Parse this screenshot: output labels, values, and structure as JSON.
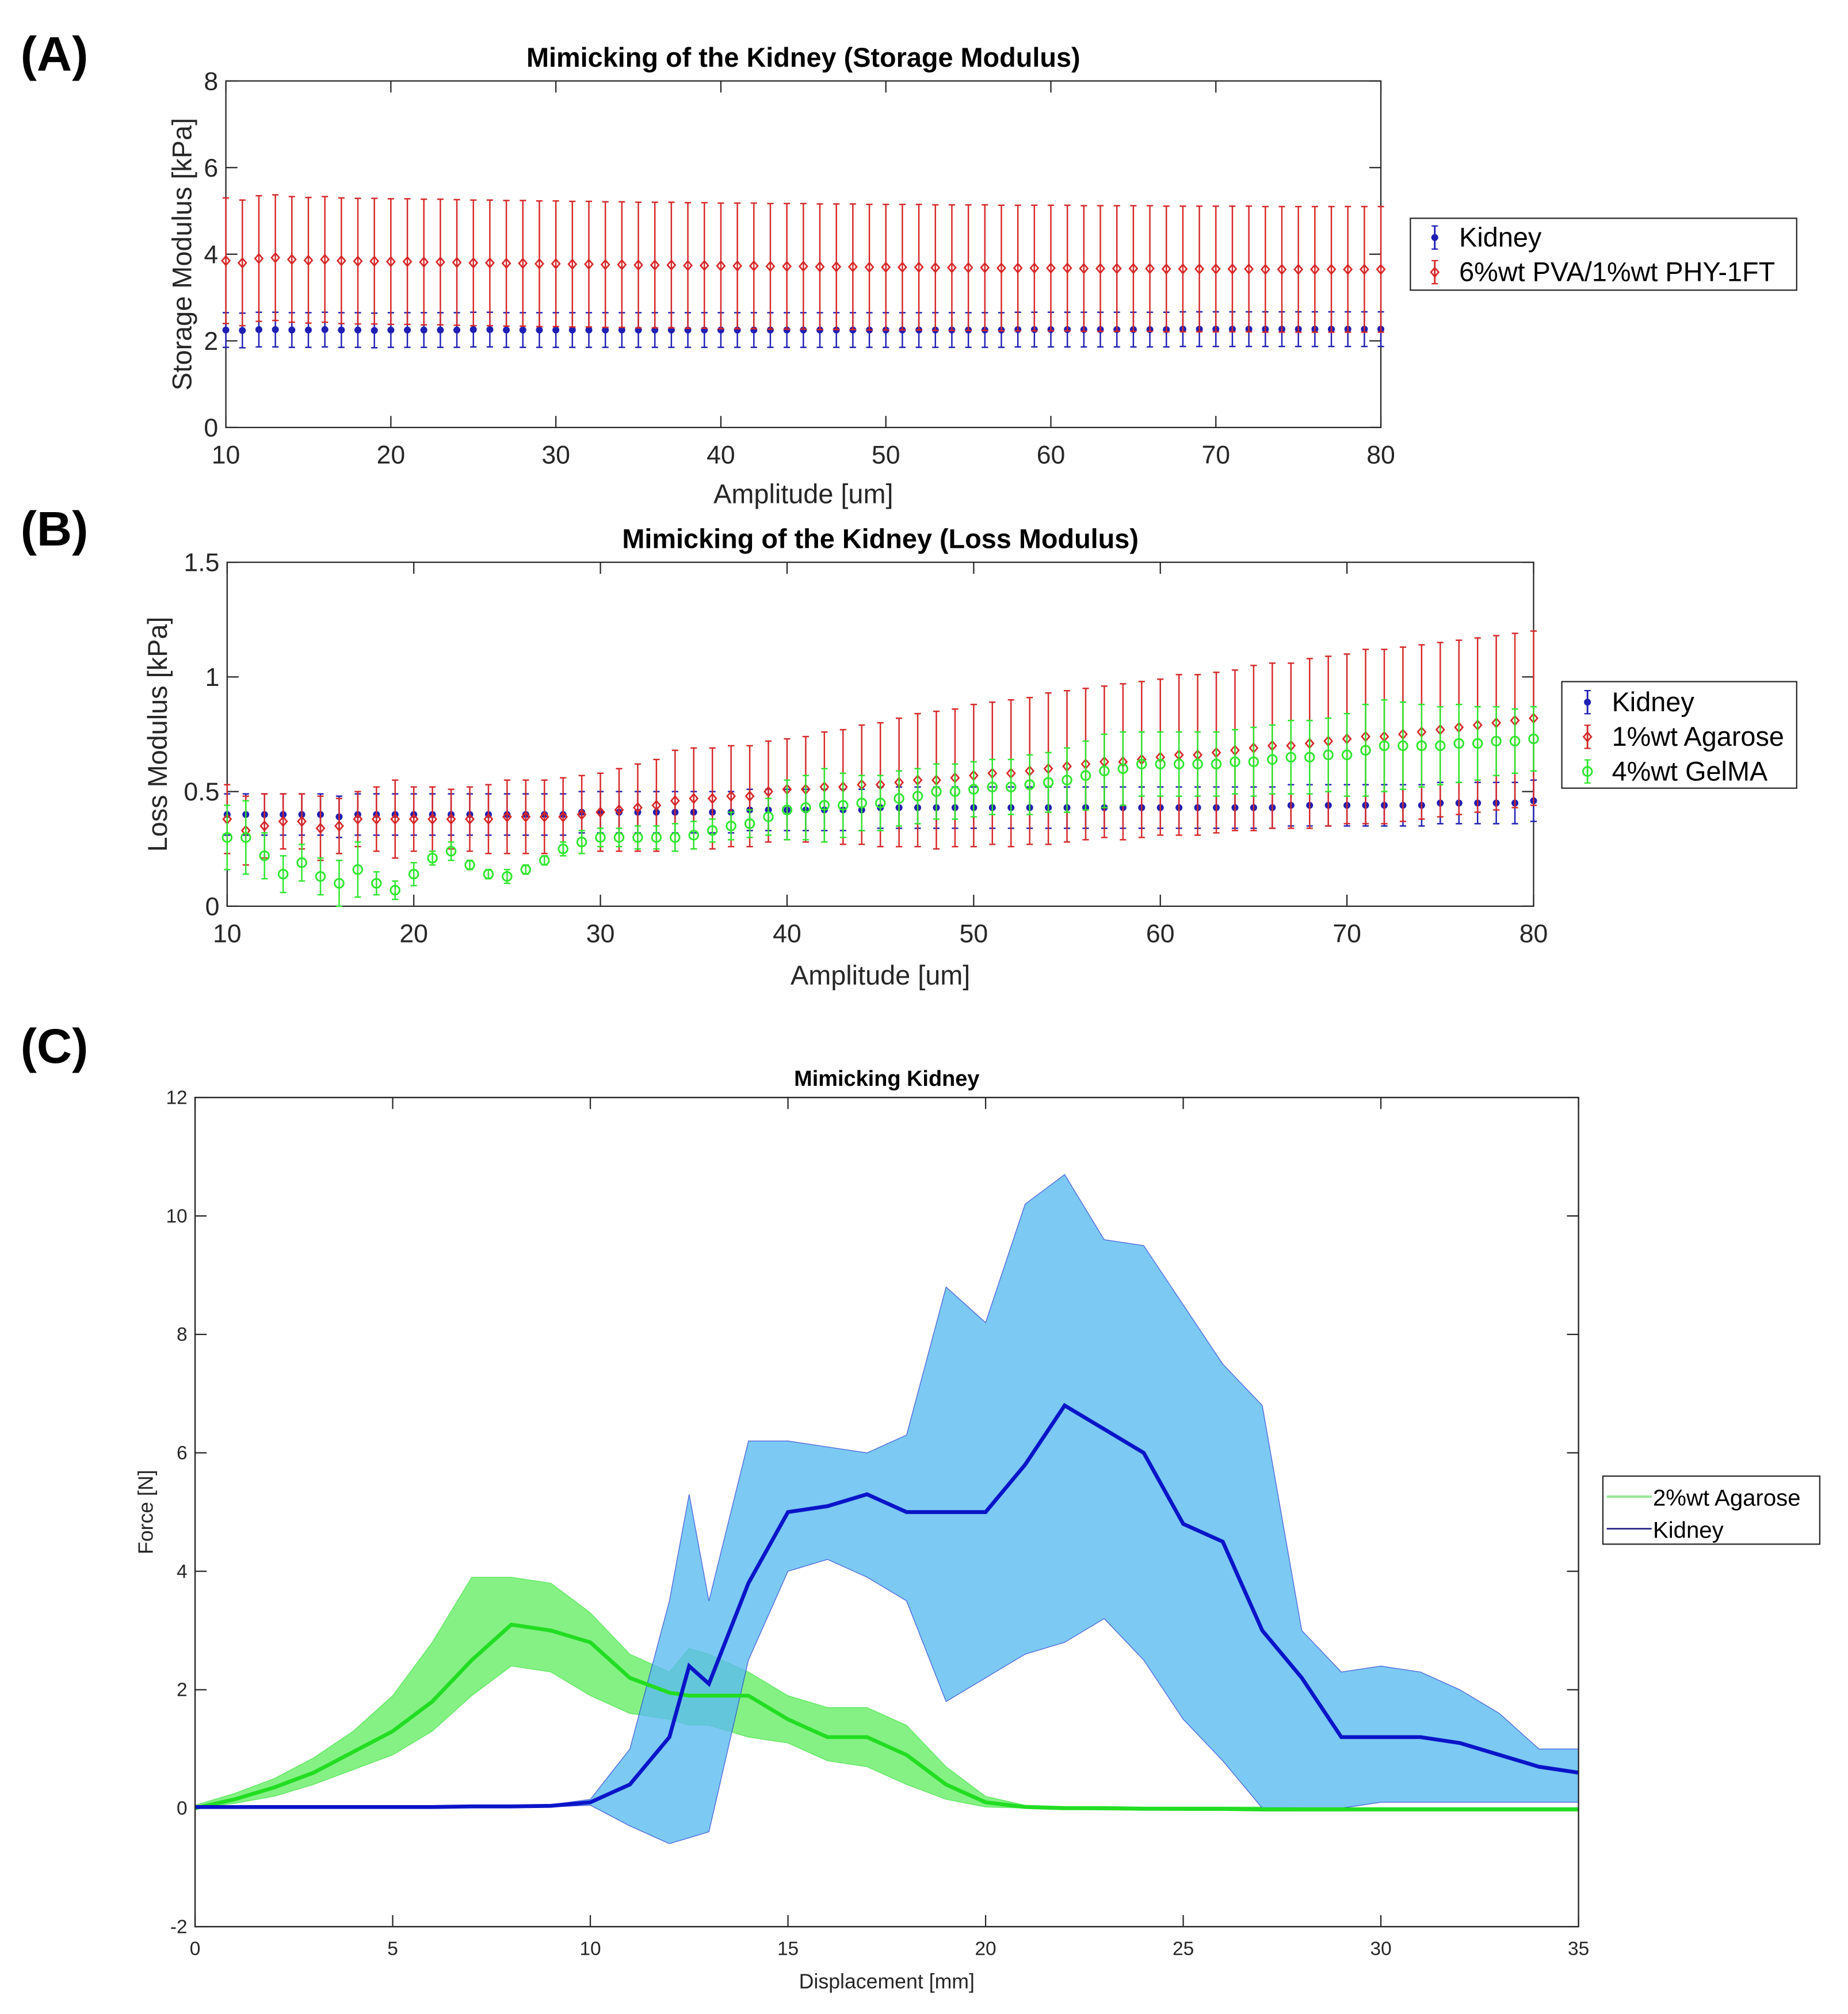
{
  "chart_data": [
    {
      "panel_label": "(A)",
      "type": "scatter",
      "title": "Mimicking of the Kidney (Storage Modulus)",
      "xlabel": "Amplitude [um]",
      "ylabel": "Storage Modulus [kPa]",
      "xlim": [
        10,
        80
      ],
      "ylim": [
        0,
        8
      ],
      "xticks": [
        10,
        20,
        30,
        40,
        50,
        60,
        70,
        80
      ],
      "yticks": [
        0,
        2,
        4,
        6,
        8
      ],
      "x_start": 10,
      "x_step": 1,
      "legend_position": "outside-right",
      "series": [
        {
          "name": "Kidney",
          "color": "#1f1fb4",
          "marker": "dot",
          "err": 0.4,
          "values": [
            2.25,
            2.24,
            2.26,
            2.26,
            2.25,
            2.25,
            2.26,
            2.25,
            2.25,
            2.24,
            2.25,
            2.25,
            2.25,
            2.25,
            2.25,
            2.26,
            2.26,
            2.25,
            2.25,
            2.25,
            2.25,
            2.25,
            2.25,
            2.25,
            2.25,
            2.25,
            2.25,
            2.25,
            2.25,
            2.25,
            2.25,
            2.25,
            2.25,
            2.25,
            2.25,
            2.25,
            2.25,
            2.25,
            2.25,
            2.25,
            2.25,
            2.25,
            2.25,
            2.25,
            2.25,
            2.25,
            2.25,
            2.25,
            2.26,
            2.26,
            2.26,
            2.26,
            2.26,
            2.26,
            2.26,
            2.26,
            2.26,
            2.26,
            2.27,
            2.27,
            2.27,
            2.27,
            2.27,
            2.27,
            2.27,
            2.27,
            2.27,
            2.27,
            2.27,
            2.27,
            2.27
          ]
        },
        {
          "name": "6%wt PVA/1%wt PHY-1FT",
          "color": "#d62728",
          "marker": "diamond",
          "err": 1.45,
          "values": [
            3.85,
            3.8,
            3.9,
            3.92,
            3.88,
            3.86,
            3.88,
            3.85,
            3.84,
            3.84,
            3.83,
            3.83,
            3.82,
            3.82,
            3.81,
            3.8,
            3.8,
            3.79,
            3.79,
            3.78,
            3.78,
            3.77,
            3.77,
            3.76,
            3.76,
            3.75,
            3.75,
            3.75,
            3.74,
            3.74,
            3.73,
            3.73,
            3.73,
            3.72,
            3.72,
            3.72,
            3.71,
            3.71,
            3.71,
            3.7,
            3.7,
            3.7,
            3.7,
            3.69,
            3.69,
            3.69,
            3.69,
            3.68,
            3.68,
            3.68,
            3.68,
            3.68,
            3.67,
            3.67,
            3.67,
            3.67,
            3.67,
            3.66,
            3.66,
            3.66,
            3.66,
            3.66,
            3.66,
            3.65,
            3.65,
            3.65,
            3.65,
            3.65,
            3.65,
            3.65,
            3.65
          ]
        }
      ]
    },
    {
      "panel_label": "(B)",
      "type": "scatter",
      "title": "Mimicking of the Kidney (Loss Modulus)",
      "xlabel": "Amplitude [um]",
      "ylabel": "Loss Modulus [kPa]",
      "xlim": [
        10,
        80
      ],
      "ylim": [
        0,
        1.5
      ],
      "xticks": [
        10,
        20,
        30,
        40,
        50,
        60,
        70,
        80
      ],
      "yticks": [
        0,
        0.5,
        1,
        1.5
      ],
      "x_start": 10,
      "x_step": 1,
      "legend_position": "outside-right",
      "series": [
        {
          "name": "Kidney",
          "color": "#1f1fb4",
          "marker": "dot",
          "err": 0.09,
          "values": [
            0.4,
            0.4,
            0.4,
            0.4,
            0.4,
            0.4,
            0.39,
            0.4,
            0.4,
            0.4,
            0.4,
            0.4,
            0.4,
            0.4,
            0.4,
            0.4,
            0.4,
            0.4,
            0.4,
            0.41,
            0.41,
            0.41,
            0.41,
            0.41,
            0.41,
            0.41,
            0.41,
            0.41,
            0.42,
            0.42,
            0.42,
            0.42,
            0.42,
            0.42,
            0.42,
            0.43,
            0.43,
            0.43,
            0.43,
            0.43,
            0.43,
            0.43,
            0.43,
            0.43,
            0.43,
            0.43,
            0.43,
            0.43,
            0.43,
            0.43,
            0.43,
            0.43,
            0.43,
            0.43,
            0.43,
            0.43,
            0.43,
            0.44,
            0.44,
            0.44,
            0.44,
            0.44,
            0.44,
            0.44,
            0.44,
            0.45,
            0.45,
            0.45,
            0.45,
            0.45,
            0.46
          ]
        },
        {
          "name": "1%wt Agarose",
          "color": "#d62728",
          "marker": "diamond",
          "values": [
            0.38,
            0.33,
            0.35,
            0.37,
            0.37,
            0.34,
            0.35,
            0.38,
            0.38,
            0.38,
            0.38,
            0.38,
            0.38,
            0.38,
            0.38,
            0.39,
            0.39,
            0.39,
            0.39,
            0.4,
            0.41,
            0.42,
            0.43,
            0.44,
            0.46,
            0.47,
            0.47,
            0.48,
            0.48,
            0.5,
            0.51,
            0.51,
            0.52,
            0.52,
            0.53,
            0.53,
            0.54,
            0.55,
            0.55,
            0.56,
            0.57,
            0.58,
            0.58,
            0.59,
            0.6,
            0.61,
            0.62,
            0.63,
            0.63,
            0.64,
            0.65,
            0.66,
            0.66,
            0.67,
            0.68,
            0.69,
            0.7,
            0.7,
            0.71,
            0.72,
            0.73,
            0.74,
            0.74,
            0.75,
            0.76,
            0.77,
            0.78,
            0.79,
            0.8,
            0.81,
            0.82
          ],
          "errors": [
            0.15,
            0.15,
            0.14,
            0.12,
            0.12,
            0.14,
            0.12,
            0.12,
            0.14,
            0.17,
            0.14,
            0.14,
            0.13,
            0.14,
            0.15,
            0.16,
            0.16,
            0.16,
            0.17,
            0.17,
            0.17,
            0.18,
            0.19,
            0.2,
            0.22,
            0.22,
            0.22,
            0.22,
            0.22,
            0.22,
            0.22,
            0.23,
            0.24,
            0.25,
            0.26,
            0.27,
            0.28,
            0.29,
            0.3,
            0.3,
            0.31,
            0.31,
            0.32,
            0.32,
            0.33,
            0.33,
            0.33,
            0.33,
            0.34,
            0.34,
            0.34,
            0.35,
            0.35,
            0.35,
            0.35,
            0.36,
            0.36,
            0.36,
            0.37,
            0.37,
            0.37,
            0.38,
            0.38,
            0.38,
            0.38,
            0.38,
            0.38,
            0.38,
            0.38,
            0.38,
            0.38
          ]
        },
        {
          "name": "4%wt GelMA",
          "color": "#2ee62e",
          "marker": "circle",
          "values": [
            0.3,
            0.3,
            0.22,
            0.14,
            0.19,
            0.13,
            0.1,
            0.16,
            0.1,
            0.07,
            0.14,
            0.21,
            0.24,
            0.18,
            0.14,
            0.13,
            0.16,
            0.2,
            0.25,
            0.28,
            0.3,
            0.3,
            0.3,
            0.3,
            0.3,
            0.31,
            0.33,
            0.35,
            0.36,
            0.39,
            0.42,
            0.43,
            0.44,
            0.44,
            0.45,
            0.45,
            0.47,
            0.48,
            0.5,
            0.5,
            0.51,
            0.52,
            0.52,
            0.53,
            0.54,
            0.55,
            0.57,
            0.59,
            0.6,
            0.62,
            0.62,
            0.62,
            0.62,
            0.62,
            0.63,
            0.63,
            0.64,
            0.65,
            0.65,
            0.66,
            0.66,
            0.68,
            0.7,
            0.7,
            0.7,
            0.7,
            0.71,
            0.71,
            0.72,
            0.72,
            0.73
          ],
          "errors": [
            0.14,
            0.16,
            0.1,
            0.08,
            0.08,
            0.08,
            0.1,
            0.12,
            0.05,
            0.04,
            0.05,
            0.03,
            0.04,
            0.02,
            0.02,
            0.03,
            0.02,
            0.02,
            0.03,
            0.05,
            0.04,
            0.04,
            0.05,
            0.05,
            0.06,
            0.06,
            0.05,
            0.06,
            0.06,
            0.08,
            0.13,
            0.14,
            0.16,
            0.14,
            0.12,
            0.12,
            0.12,
            0.12,
            0.12,
            0.12,
            0.12,
            0.12,
            0.12,
            0.13,
            0.13,
            0.14,
            0.15,
            0.16,
            0.16,
            0.14,
            0.14,
            0.14,
            0.14,
            0.14,
            0.14,
            0.15,
            0.15,
            0.16,
            0.16,
            0.16,
            0.18,
            0.2,
            0.2,
            0.19,
            0.18,
            0.17,
            0.17,
            0.16,
            0.15,
            0.14,
            0.14
          ]
        }
      ]
    },
    {
      "panel_label": "(C)",
      "type": "area",
      "title": "Mimicking Kidney",
      "xlabel": "Displacement [mm]",
      "ylabel": "Force [N]",
      "xlim": [
        0,
        35
      ],
      "ylim": [
        -2,
        12
      ],
      "xticks": [
        0,
        5,
        10,
        15,
        20,
        25,
        30,
        35
      ],
      "yticks": [
        -2,
        0,
        2,
        4,
        6,
        8,
        10,
        12
      ],
      "legend_position": "outside-right",
      "x": [
        0,
        1,
        2,
        3,
        4,
        5,
        6,
        7,
        8,
        9,
        10,
        11,
        12,
        12.5,
        13,
        14,
        15,
        16,
        17,
        18,
        19,
        20,
        21,
        22,
        23,
        24,
        25,
        26,
        27,
        28,
        29,
        30,
        31,
        32,
        33,
        34,
        35
      ],
      "series": [
        {
          "name": "2%wt Agarose",
          "color": "#22dd22",
          "band_color": "#66ee66",
          "mean": [
            0,
            0.15,
            0.35,
            0.6,
            0.95,
            1.3,
            1.8,
            2.5,
            3.1,
            3.0,
            2.8,
            2.2,
            1.95,
            1.9,
            1.9,
            1.9,
            1.5,
            1.2,
            1.2,
            0.9,
            0.4,
            0.1,
            0.02,
            0,
            0,
            -0.01,
            -0.01,
            -0.01,
            -0.02,
            -0.02,
            -0.02,
            -0.02,
            -0.02,
            -0.02,
            -0.02,
            -0.02,
            -0.02
          ],
          "upper": [
            0.05,
            0.25,
            0.5,
            0.85,
            1.3,
            1.9,
            2.8,
            3.9,
            3.9,
            3.8,
            3.3,
            2.6,
            2.3,
            2.7,
            2.6,
            2.3,
            1.9,
            1.7,
            1.7,
            1.4,
            0.7,
            0.2,
            0.05,
            0.03,
            0.03,
            0.02,
            0.02,
            0.02,
            0.02,
            0.01,
            0.01,
            0.01,
            0.01,
            0.01,
            0.01,
            0.01,
            0.01
          ],
          "lower": [
            0,
            0.08,
            0.2,
            0.4,
            0.65,
            0.9,
            1.3,
            1.9,
            2.4,
            2.3,
            1.9,
            1.6,
            1.5,
            1.4,
            1.4,
            1.2,
            1.1,
            0.8,
            0.7,
            0.4,
            0.15,
            0.02,
            0,
            -0.02,
            -0.03,
            -0.03,
            -0.04,
            -0.04,
            -0.05,
            -0.05,
            -0.05,
            -0.05,
            -0.05,
            -0.05,
            -0.05,
            -0.05,
            -0.05
          ]
        },
        {
          "name": "Kidney",
          "color": "#0a14c8",
          "band_color": "#5bbcf0",
          "mean": [
            0.02,
            0.02,
            0.02,
            0.02,
            0.02,
            0.02,
            0.02,
            0.03,
            0.03,
            0.04,
            0.1,
            0.4,
            1.2,
            2.4,
            2.1,
            3.8,
            5.0,
            5.1,
            5.3,
            5.0,
            5.0,
            5.0,
            5.8,
            6.8,
            6.4,
            6.0,
            4.8,
            4.5,
            3.0,
            2.2,
            1.2,
            1.2,
            1.2,
            1.1,
            0.9,
            0.7,
            0.6
          ],
          "upper": [
            0.03,
            0.03,
            0.03,
            0.03,
            0.03,
            0.03,
            0.03,
            0.04,
            0.05,
            0.06,
            0.15,
            1.0,
            3.5,
            5.3,
            3.5,
            6.2,
            6.2,
            6.1,
            6.0,
            6.3,
            8.8,
            8.2,
            10.2,
            10.7,
            9.6,
            9.5,
            8.5,
            7.5,
            6.8,
            3.0,
            2.3,
            2.4,
            2.3,
            2.0,
            1.6,
            1.0,
            1.0
          ],
          "lower": [
            0,
            0,
            0,
            0,
            0,
            0,
            0,
            0.01,
            0.01,
            0.02,
            0.05,
            -0.3,
            -0.6,
            -0.5,
            -0.4,
            2.5,
            4.0,
            4.2,
            3.9,
            3.5,
            1.8,
            2.2,
            2.6,
            2.8,
            3.2,
            2.5,
            1.5,
            0.8,
            0,
            0,
            0,
            0.1,
            0.1,
            0.1,
            0.1,
            0.1,
            0.1
          ]
        }
      ]
    }
  ]
}
